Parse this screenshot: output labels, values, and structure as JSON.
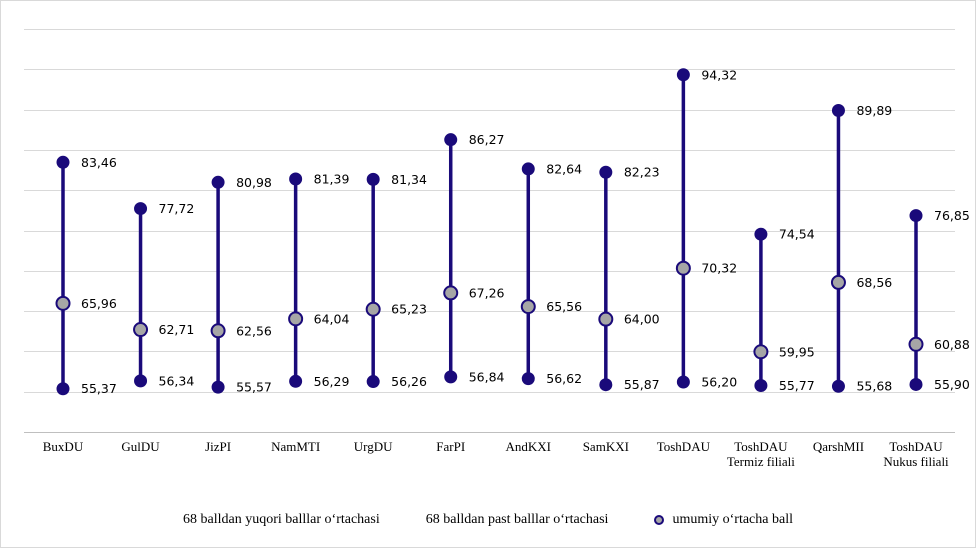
{
  "chart_data": {
    "type": "line",
    "categories": [
      [
        "BuxDU"
      ],
      [
        "GulDU"
      ],
      [
        "JizPI"
      ],
      [
        "NamMTI"
      ],
      [
        "UrgDU"
      ],
      [
        "FarPI"
      ],
      [
        "AndKXI"
      ],
      [
        "SamKXI"
      ],
      [
        "ToshDAU"
      ],
      [
        "ToshDAU",
        "Termiz filiali"
      ],
      [
        "QarshMII"
      ],
      [
        "ToshDAU",
        "Nukus filiali"
      ]
    ],
    "series": [
      {
        "name": "68 balldan yuqori balllar o‘rtachasi",
        "values": [
          83.46,
          77.72,
          80.98,
          81.39,
          81.34,
          86.27,
          82.64,
          82.23,
          94.32,
          74.54,
          89.89,
          76.85
        ],
        "labels": [
          "83,46",
          "77,72",
          "80,98",
          "81,39",
          "81,34",
          "86,27",
          "82,64",
          "82,23",
          "94,32",
          "74,54",
          "89,89",
          "76,85"
        ]
      },
      {
        "name": "68 balldan past balllar o‘rtachasi",
        "values": [
          55.37,
          56.34,
          55.57,
          56.29,
          56.26,
          56.84,
          56.62,
          55.87,
          56.2,
          55.77,
          55.68,
          55.9
        ],
        "labels": [
          "55,37",
          "56,34",
          "55,57",
          "56,29",
          "56,26",
          "56,84",
          "56,62",
          "55,87",
          "56,20",
          "55,77",
          "55,68",
          "55,90"
        ]
      },
      {
        "name": "umumiy o‘rtacha ball",
        "values": [
          65.96,
          62.71,
          62.56,
          64.04,
          65.23,
          67.26,
          65.56,
          64.0,
          70.32,
          59.95,
          68.56,
          60.88
        ],
        "labels": [
          "65,96",
          "62,71",
          "62,56",
          "64,04",
          "65,23",
          "67,26",
          "65,56",
          "64,00",
          "70,32",
          "59,95",
          "68,56",
          "60,88"
        ]
      }
    ],
    "ylim": [
      50,
      100
    ],
    "grid": true,
    "legend_position": "bottom",
    "colors": {
      "line": "#1a0a7a",
      "marker_dark": "#1a0a7a",
      "marker_avg_fill": "#a6a6a6",
      "grid": "#d9d9d9"
    }
  }
}
